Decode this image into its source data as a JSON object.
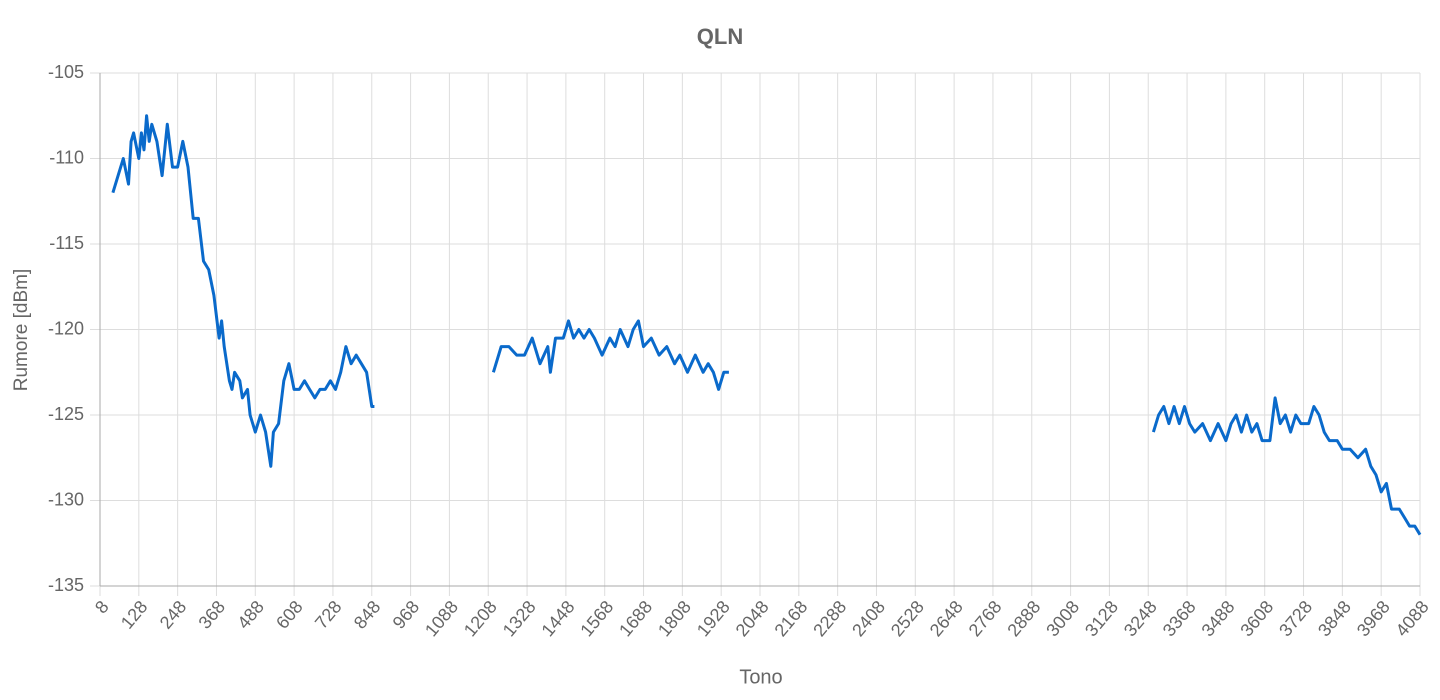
{
  "chart_data": {
    "type": "line",
    "title": "QLN",
    "x_label": "Tono",
    "y_label": "Rumore [dBm]",
    "xlim": [
      8,
      4088
    ],
    "ylim": [
      -135,
      -105
    ],
    "xticks": [
      8,
      128,
      248,
      368,
      488,
      608,
      728,
      848,
      968,
      1088,
      1208,
      1328,
      1448,
      1568,
      1688,
      1808,
      1928,
      2048,
      2168,
      2288,
      2408,
      2528,
      2648,
      2768,
      2888,
      3008,
      3128,
      3248,
      3368,
      3488,
      3608,
      3728,
      3848,
      3968,
      4088
    ],
    "yticks": [
      -105,
      -110,
      -115,
      -120,
      -125,
      -130,
      -135
    ],
    "grid": true,
    "x": [
      48,
      64,
      80,
      96,
      104,
      112,
      128,
      136,
      144,
      152,
      160,
      168,
      184,
      200,
      216,
      232,
      248,
      264,
      280,
      296,
      312,
      328,
      344,
      360,
      376,
      384,
      392,
      408,
      416,
      424,
      440,
      448,
      464,
      472,
      488,
      504,
      520,
      536,
      544,
      560,
      576,
      592,
      608,
      624,
      640,
      656,
      672,
      688,
      704,
      720,
      736,
      752,
      768,
      784,
      800,
      816,
      832,
      848,
      856,
      1000,
      1224,
      1248,
      1272,
      1296,
      1320,
      1344,
      1368,
      1392,
      1400,
      1416,
      1440,
      1456,
      1472,
      1488,
      1504,
      1520,
      1536,
      1560,
      1584,
      1600,
      1616,
      1640,
      1656,
      1672,
      1688,
      1712,
      1736,
      1760,
      1784,
      1800,
      1824,
      1848,
      1872,
      1888,
      1904,
      1920,
      1936,
      1952,
      2600,
      3264,
      3280,
      3296,
      3312,
      3328,
      3344,
      3360,
      3376,
      3392,
      3416,
      3440,
      3464,
      3488,
      3504,
      3520,
      3536,
      3552,
      3568,
      3584,
      3600,
      3624,
      3640,
      3656,
      3672,
      3688,
      3704,
      3720,
      3744,
      3760,
      3776,
      3792,
      3808,
      3832,
      3848,
      3872,
      3896,
      3920,
      3936,
      3952,
      3968,
      3984,
      4000,
      4024,
      4040,
      4056,
      4072,
      4088
    ],
    "series": [
      {
        "name": "QLN",
        "color": "#0a6acb",
        "values": [
          -112,
          -111,
          -110,
          -111.5,
          -109,
          -108.5,
          -110,
          -108.5,
          -109.5,
          -107.5,
          -109,
          -108,
          -109,
          -111,
          -108,
          -110.5,
          -110.5,
          -109,
          -110.5,
          -113.5,
          -113.5,
          -116,
          -116.5,
          -118,
          -120.5,
          -119.5,
          -121,
          -123,
          -123.5,
          -122.5,
          -123,
          -124,
          -123.5,
          -125,
          -126,
          -125,
          -126,
          -128,
          -126,
          -125.5,
          -123,
          -122,
          -123.5,
          -123.5,
          -123,
          -123.5,
          -124,
          -123.5,
          -123.5,
          -123,
          -123.5,
          -122.5,
          -121,
          -122,
          -121.5,
          -122,
          -122.5,
          -124.5,
          -124.5,
          null,
          -122.5,
          -121,
          -121,
          -121.5,
          -121.5,
          -120.5,
          -122,
          -121,
          -122.5,
          -120.5,
          -120.5,
          -119.5,
          -120.5,
          -120,
          -120.5,
          -120,
          -120.5,
          -121.5,
          -120.5,
          -121,
          -120,
          -121,
          -120,
          -119.5,
          -121,
          -120.5,
          -121.5,
          -121,
          -122,
          -121.5,
          -122.5,
          -121.5,
          -122.5,
          -122,
          -122.5,
          -123.5,
          -122.5,
          -122.5,
          null,
          -126,
          -125,
          -124.5,
          -125.5,
          -124.5,
          -125.5,
          -124.5,
          -125.5,
          -126,
          -125.5,
          -126.5,
          -125.5,
          -126.5,
          -125.5,
          -125,
          -126,
          -125,
          -126,
          -125.5,
          -126.5,
          -126.5,
          -124,
          -125.5,
          -125,
          -126,
          -125,
          -125.5,
          -125.5,
          -124.5,
          -125,
          -126,
          -126.5,
          -126.5,
          -127,
          -127,
          -127.5,
          -127,
          -128,
          -128.5,
          -129.5,
          -129,
          -130.5,
          -130.5,
          -131,
          -131.5,
          -131.5,
          -132
        ]
      }
    ]
  }
}
